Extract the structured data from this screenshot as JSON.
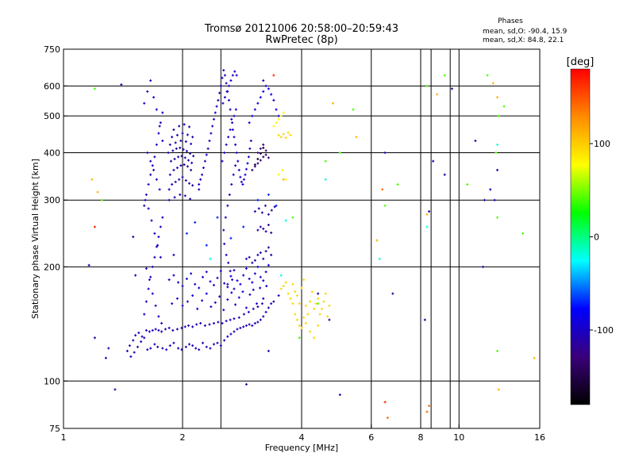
{
  "header": {
    "title_line1": "Tromsø 20121006 20:58:00–20:59:43",
    "title_line2": "RwPretec (8p)",
    "stats_title": "Phases",
    "stats_o": "mean, sd,O: -90.4, 15.9",
    "stats_x": "mean, sd,X:  84.8, 22.1"
  },
  "chart_data": {
    "type": "scatter",
    "xlabel": "Frequency [MHz]",
    "ylabel": "Stationary phase Virtual Height [km]",
    "x_scale": "log",
    "y_scale": "log",
    "xlim": [
      1,
      16
    ],
    "ylim": [
      75,
      750
    ],
    "x_ticks": [
      1,
      2,
      4,
      6,
      8,
      10,
      16
    ],
    "y_ticks": [
      75,
      100,
      200,
      300,
      400,
      500,
      600,
      750
    ],
    "x_minor_grid": [
      2.5,
      8.5,
      9.5
    ],
    "grid": true,
    "colorbar": {
      "label": "[deg]",
      "ticks": [
        100,
        0,
        -100
      ],
      "range": [
        -180,
        180
      ],
      "colors": [
        "#ff0000",
        "#ff8c00",
        "#ffff00",
        "#00ff00",
        "#00ffff",
        "#0000ff",
        "#3a007a",
        "#000000"
      ]
    },
    "series": [
      {
        "name": "",
        "phase": -105,
        "x": [
          1.63,
          1.66,
          1.7,
          1.73,
          1.78,
          1.82,
          1.86,
          1.9,
          1.95,
          1.99,
          2.04,
          2.08,
          2.12,
          2.16,
          2.2,
          2.25,
          2.3,
          2.35,
          2.4,
          2.45,
          2.5,
          2.55,
          2.6,
          2.65,
          2.7,
          2.75,
          2.8,
          2.85,
          2.9,
          2.95,
          3.0,
          3.05,
          3.1,
          3.15,
          3.2,
          3.25,
          3.3,
          3.35,
          3.4,
          3.5
        ],
        "y": [
          121,
          122,
          125,
          123,
          122,
          121,
          124,
          126,
          122,
          121,
          123,
          125,
          124,
          122,
          121,
          126,
          123,
          122,
          125,
          126,
          124,
          128,
          131,
          133,
          135,
          137,
          138,
          139,
          140,
          141,
          140,
          142,
          143,
          145,
          148,
          152,
          156,
          160,
          162,
          168
        ]
      },
      {
        "name": "",
        "phase": -105,
        "x": [
          1.62,
          1.65,
          1.68,
          1.71,
          1.74,
          1.77,
          1.81,
          1.85,
          1.89,
          1.94,
          1.99,
          2.03,
          2.07,
          2.12,
          2.17,
          2.22,
          2.28,
          2.34,
          2.4,
          2.46,
          2.52,
          2.58,
          2.64,
          2.7,
          2.78,
          2.86,
          2.94,
          3.02,
          3.1,
          3.18
        ],
        "y": [
          136,
          135,
          136,
          137,
          136,
          135,
          137,
          138,
          136,
          137,
          138,
          139,
          140,
          139,
          141,
          142,
          140,
          141,
          142,
          143,
          142,
          144,
          145,
          146,
          147,
          150,
          152,
          155,
          157,
          160
        ]
      },
      {
        "name": "",
        "phase": -100,
        "x": [
          1.6,
          1.62,
          1.64,
          1.66,
          1.68,
          1.7,
          1.72,
          1.74,
          1.76,
          1.78,
          1.6,
          1.62,
          1.64,
          1.66,
          1.68,
          1.7,
          1.72,
          1.74,
          1.76,
          1.78,
          1.6,
          1.63,
          1.66,
          1.69,
          1.72,
          1.75,
          1.78,
          1.61,
          1.64,
          1.67,
          1.7,
          1.73,
          1.76,
          1.62,
          1.65,
          1.68,
          1.71,
          1.74,
          1.77,
          1.63,
          1.66,
          1.69,
          1.72,
          1.75
        ],
        "y": [
          150,
          162,
          175,
          188,
          200,
          212,
          226,
          240,
          255,
          270,
          290,
          310,
          330,
          350,
          370,
          390,
          420,
          450,
          480,
          510,
          540,
          580,
          620,
          560,
          520,
          470,
          430,
          300,
          285,
          265,
          245,
          228,
          212,
          198,
          185,
          170,
          158,
          148,
          142,
          400,
          380,
          360,
          340,
          320
        ]
      },
      {
        "name": "",
        "phase": -110,
        "x": [
          1.85,
          1.88,
          1.92,
          1.96,
          2.0,
          2.04,
          2.08,
          2.12,
          1.86,
          1.9,
          1.94,
          1.98,
          2.02,
          2.06,
          2.1,
          1.87,
          1.91,
          1.95,
          1.99,
          2.03,
          2.07,
          2.11,
          1.84,
          1.89,
          1.93,
          1.97,
          2.01,
          2.05,
          2.09,
          2.13,
          1.86,
          1.92,
          1.98,
          2.04,
          2.1,
          1.88,
          1.94,
          2.0,
          2.06,
          2.12,
          1.9,
          1.96,
          2.02,
          2.08,
          1.85,
          1.91,
          1.97,
          2.03,
          2.09
        ],
        "y": [
          320,
          330,
          335,
          340,
          345,
          338,
          332,
          328,
          350,
          360,
          365,
          370,
          372,
          368,
          360,
          380,
          385,
          390,
          392,
          388,
          382,
          376,
          400,
          405,
          410,
          412,
          408,
          404,
          398,
          392,
          420,
          425,
          430,
          428,
          422,
          440,
          445,
          450,
          446,
          440,
          460,
          470,
          475,
          468,
          300,
          305,
          310,
          308,
          302
        ]
      },
      {
        "name": "",
        "phase": -100,
        "x": [
          2.2,
          2.22,
          2.24,
          2.26,
          2.28,
          2.3,
          2.32,
          2.34,
          2.36,
          2.38,
          2.4,
          2.42,
          2.44,
          2.46,
          2.48,
          2.5,
          2.52,
          2.54,
          2.56,
          2.58,
          2.6,
          2.62,
          2.64,
          2.66,
          2.68,
          2.7,
          2.72,
          2.74,
          2.76,
          2.78,
          2.8,
          2.82,
          2.84,
          2.86,
          2.88,
          2.9,
          2.92,
          2.94,
          2.96,
          2.98
        ],
        "y": [
          330,
          340,
          350,
          365,
          380,
          395,
          410,
          430,
          450,
          470,
          490,
          510,
          530,
          550,
          575,
          600,
          630,
          660,
          640,
          610,
          580,
          550,
          520,
          490,
          460,
          440,
          420,
          400,
          380,
          360,
          345,
          335,
          330,
          340,
          350,
          362,
          375,
          390,
          410,
          430
        ]
      },
      {
        "name": "",
        "phase": -100,
        "x": [
          2.52,
          2.55,
          2.58,
          2.61,
          2.64,
          2.67,
          2.7,
          2.73,
          2.53,
          2.56,
          2.59,
          2.62,
          2.65,
          2.68,
          2.71,
          2.74,
          2.54,
          2.57,
          2.6,
          2.63,
          2.66,
          2.69,
          2.72,
          2.55,
          2.58,
          2.61,
          2.64,
          2.67,
          2.7
        ],
        "y": [
          380,
          400,
          420,
          440,
          460,
          480,
          500,
          520,
          540,
          560,
          580,
          600,
          620,
          640,
          655,
          640,
          250,
          270,
          290,
          310,
          330,
          350,
          370,
          230,
          215,
          205,
          195,
          185,
          175
        ]
      },
      {
        "name": "",
        "phase": -95,
        "x": [
          1.85,
          1.9,
          1.95,
          2.0,
          2.05,
          2.1,
          2.15,
          2.2,
          2.25,
          2.3,
          2.35,
          2.4,
          2.45,
          2.5,
          2.55,
          2.6,
          2.65,
          2.7,
          2.75,
          2.8,
          2.85,
          2.9,
          2.95,
          3.0,
          3.05,
          3.1,
          3.15,
          3.2,
          3.25,
          3.3
        ],
        "y": [
          185,
          190,
          182,
          178,
          186,
          192,
          180,
          176,
          188,
          194,
          183,
          179,
          187,
          195,
          181,
          177,
          189,
          196,
          184,
          180,
          190,
          198,
          186,
          182,
          192,
          200,
          188,
          184,
          194,
          202
        ]
      },
      {
        "name": "",
        "phase": -95,
        "x": [
          1.88,
          1.94,
          2.0,
          2.06,
          2.12,
          2.18,
          2.24,
          2.3,
          2.36,
          2.42,
          2.48,
          2.54,
          2.6,
          2.66,
          2.72,
          2.78,
          2.84,
          2.9,
          2.96,
          3.02,
          3.08,
          3.14,
          3.2,
          3.26
        ],
        "y": [
          160,
          165,
          158,
          162,
          168,
          155,
          163,
          170,
          157,
          161,
          167,
          154,
          164,
          171,
          159,
          166,
          172,
          156,
          169,
          174,
          160,
          176,
          165,
          178
        ]
      },
      {
        "name": "",
        "phase": -110,
        "x": [
          2.9,
          2.95,
          3.0,
          3.05,
          3.1,
          3.15,
          3.2,
          3.25,
          3.3,
          3.35,
          3.1,
          3.15,
          3.2,
          3.25,
          3.3,
          3.35,
          3.05,
          3.12,
          3.18,
          3.24,
          3.3,
          3.36,
          3.42
        ],
        "y": [
          210,
          212,
          205,
          208,
          215,
          218,
          210,
          220,
          225,
          215,
          250,
          255,
          252,
          248,
          258,
          246,
          280,
          285,
          278,
          290,
          275,
          282,
          288
        ]
      },
      {
        "name": "",
        "phase": -130,
        "x": [
          3.0,
          3.05,
          3.1,
          3.15,
          3.2,
          3.25,
          3.3,
          3.1,
          3.15,
          3.2,
          3.25
        ],
        "y": [
          360,
          368,
          375,
          382,
          390,
          395,
          388,
          400,
          410,
          420,
          405
        ]
      },
      {
        "name": "",
        "phase": -160,
        "x": [
          3.05,
          3.1,
          3.15,
          3.2
        ],
        "y": [
          372,
          385,
          398,
          412
        ]
      },
      {
        "name": "",
        "phase": -85,
        "x": [
          2.95,
          3.0,
          3.05,
          3.1,
          3.15,
          3.2,
          3.25,
          3.3,
          3.35,
          3.4,
          3.45,
          3.5
        ],
        "y": [
          480,
          500,
          520,
          540,
          560,
          580,
          600,
          590,
          570,
          550,
          520,
          500
        ]
      },
      {
        "name": "",
        "phase": -105,
        "x": [
          1.45,
          1.47,
          1.5,
          1.52,
          1.55,
          1.58,
          1.48,
          1.51,
          1.54,
          1.57,
          1.6
        ],
        "y": [
          120,
          124,
          128,
          132,
          134,
          131,
          116,
          119,
          123,
          127,
          130
        ]
      },
      {
        "name": "",
        "phase": -70,
        "x": [
          2.05,
          2.15,
          2.3,
          2.45,
          2.65,
          2.85,
          3.1,
          3.3,
          3.45
        ],
        "y": [
          245,
          262,
          228,
          270,
          238,
          255,
          300,
          310,
          290
        ]
      },
      {
        "name": "",
        "phase": 95,
        "x": [
          3.55,
          3.6,
          3.65,
          3.7,
          3.75,
          3.8,
          3.85,
          3.9,
          3.95,
          4.0,
          4.05,
          4.1,
          4.15,
          4.2,
          4.25,
          4.3,
          4.35,
          4.4,
          4.45,
          4.5,
          4.55,
          4.6,
          4.65,
          4.7,
          3.5,
          3.55,
          3.6,
          3.65,
          3.7,
          3.75,
          3.8,
          3.85,
          3.9,
          3.95,
          4.0,
          4.05,
          4.1,
          4.2,
          4.3,
          4.4
        ],
        "y": [
          175,
          178,
          182,
          170,
          165,
          180,
          172,
          168,
          160,
          176,
          185,
          158,
          150,
          162,
          172,
          155,
          160,
          165,
          150,
          155,
          162,
          170,
          148,
          158,
          445,
          440,
          448,
          438,
          452,
          445,
          160,
          150,
          145,
          140,
          138,
          147,
          142,
          135,
          130,
          140
        ]
      },
      {
        "name": "",
        "phase": 80,
        "x": [
          3.4,
          3.45,
          3.5,
          3.55,
          3.6,
          3.5,
          3.58,
          3.65
        ],
        "y": [
          470,
          480,
          490,
          500,
          510,
          350,
          360,
          340
        ]
      },
      {
        "name": "",
        "phase": -110,
        "x": [
          1.28,
          1.3,
          1.4,
          1.52,
          1.9,
          2.6,
          2.9,
          3.3,
          5.0,
          6.5,
          6.8,
          8.2,
          8.4,
          8.6,
          9.2,
          9.6,
          11.0,
          11.5,
          11.6,
          12.0,
          12.3,
          12.5,
          4.7,
          4.4,
          3.2,
          1.2,
          1.16,
          1.35,
          1.5,
          2.2
        ],
        "y": [
          115,
          122,
          605,
          190,
          215,
          180,
          98,
          120,
          92,
          400,
          170,
          145,
          280,
          380,
          350,
          590,
          430,
          200,
          300,
          320,
          300,
          360,
          145,
          170,
          620,
          130,
          202,
          95,
          240,
          320
        ]
      },
      {
        "name": "",
        "phase": 40,
        "x": [
          1.2,
          1.25,
          3.8,
          3.95,
          4.4,
          4.6,
          5.0,
          5.4,
          6.5,
          7.0,
          8.3,
          9.2,
          10.5,
          11.8,
          12.4,
          12.5,
          12.6,
          13.0,
          14.5,
          12.5
        ],
        "y": [
          590,
          300,
          270,
          130,
          160,
          380,
          400,
          520,
          290,
          330,
          600,
          640,
          330,
          640,
          400,
          270,
          500,
          530,
          245,
          120
        ]
      },
      {
        "name": "",
        "phase": 110,
        "x": [
          1.18,
          1.22,
          3.6,
          4.8,
          5.5,
          6.2,
          8.3,
          8.8,
          12.5,
          12.6,
          15.5,
          12.2
        ],
        "y": [
          340,
          315,
          340,
          540,
          440,
          235,
          275,
          570,
          560,
          95,
          115,
          610
        ]
      },
      {
        "name": "",
        "phase": 165,
        "x": [
          6.5,
          3.4,
          1.2
        ],
        "y": [
          88,
          640,
          255
        ]
      },
      {
        "name": "",
        "phase": 140,
        "x": [
          6.4,
          6.6,
          8.3,
          8.4
        ],
        "y": [
          320,
          80,
          83,
          86
        ]
      },
      {
        "name": "",
        "phase": -20,
        "x": [
          2.35,
          3.55,
          3.65,
          4.6,
          6.3,
          8.3,
          12.5
        ],
        "y": [
          210,
          190,
          265,
          340,
          210,
          255,
          420
        ]
      }
    ]
  }
}
